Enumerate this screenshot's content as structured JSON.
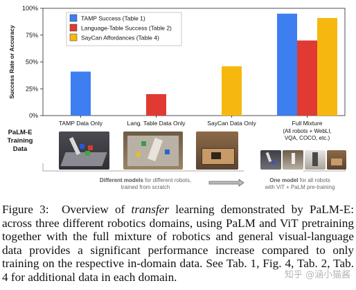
{
  "chart_data": {
    "type": "bar",
    "ylabel": "Success Rate or Accuracy",
    "ylim": [
      0,
      100
    ],
    "yticks": [
      "0%",
      "25%",
      "50%",
      "75%",
      "100%"
    ],
    "grid": false,
    "legend_position": "top-left",
    "categories": [
      "TAMP Data Only",
      "Lang. Table Data Only",
      "SayCan Data Only",
      "Full Mixture"
    ],
    "category_sublabel": "(All robots + WebLI, VQA, COCO, etc.)",
    "series": [
      {
        "name": "TAMP Success (Table 1)",
        "color": "#3d7ef0",
        "values": [
          41,
          null,
          null,
          95
        ]
      },
      {
        "name": "Language-Table Success (Table 2)",
        "color": "#e03a32",
        "values": [
          null,
          20,
          null,
          70
        ]
      },
      {
        "name": "SayCan Affordances (Table 4)",
        "color": "#f6b80f",
        "values": [
          null,
          null,
          46,
          91
        ]
      }
    ]
  },
  "side_label": [
    "PaLM-E",
    "Training",
    "Data"
  ],
  "notes": {
    "different_bold": "Different models",
    "different_rest": "for different robots,",
    "different_line2": "trained from scratch",
    "one_bold": "One model",
    "one_rest": "for all robots",
    "one_line2": "with ViT + PaLM pre-training"
  },
  "caption": {
    "label": "Figure 3:",
    "text1": "Overview of ",
    "italic": "transfer",
    "text2": " learning demonstrated by PaLM-E: across three different robotics domains, using PaLM and ViT pretraining together with the full mixture of robotics and general visual-language data provides a significant performance increase compared to only training on the respective in-domain data. See Tab. 1, Fig. 4, Tab. 2, Tab. 4 for additional data in each domain."
  },
  "watermark": "知乎 @涵小猫酱"
}
